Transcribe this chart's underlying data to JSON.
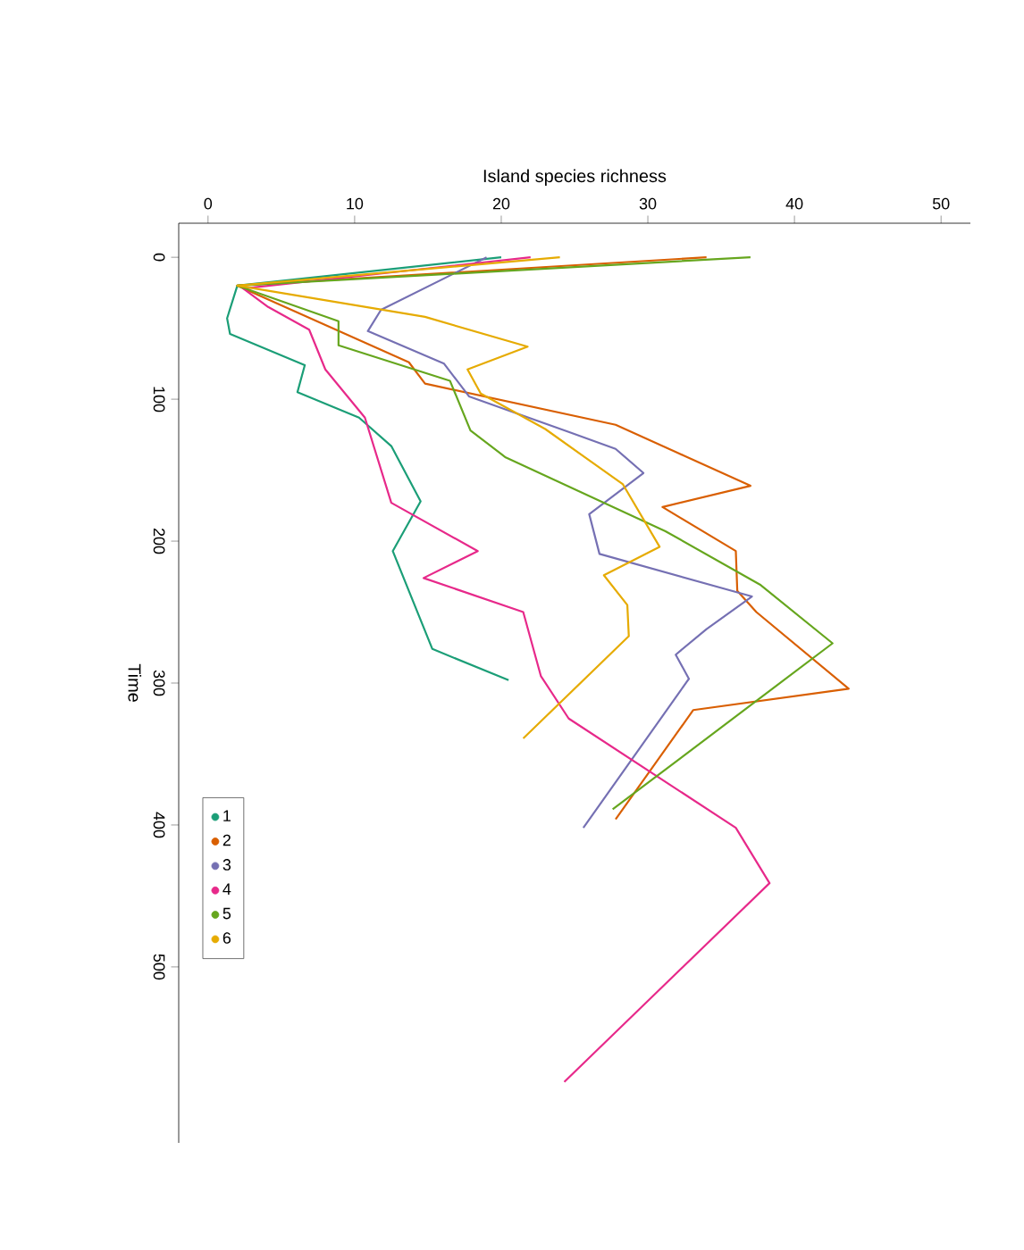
{
  "chart_data": {
    "type": "line",
    "xlabel": "Island species richness",
    "ylabel": "Time",
    "xlim": [
      -2,
      52
    ],
    "ylim": [
      624,
      -24
    ],
    "xticks": [
      0,
      10,
      20,
      30,
      40,
      50
    ],
    "yticks": [
      0,
      100,
      200,
      300,
      400,
      500
    ],
    "grid": false,
    "legend": "bottom left",
    "marker": "none",
    "line_style": "solid",
    "series": [
      {
        "name": "1",
        "color": "#1b9e77",
        "x": [
          20,
          2,
          1.3,
          1.5,
          6.6,
          6.1,
          10.3,
          12.5,
          14.5,
          12.6,
          15.3,
          20.5
        ],
        "values": [
          0,
          20,
          43,
          54,
          76,
          95,
          113,
          133,
          172,
          207,
          276,
          298
        ]
      },
      {
        "name": "2",
        "color": "#d95f02",
        "x": [
          34,
          2,
          13.7,
          14.8,
          27.8,
          37,
          31,
          36,
          36.1,
          37.4,
          43.7,
          33.1,
          27.8
        ],
        "values": [
          0,
          20,
          74,
          89,
          118,
          161,
          176,
          207,
          235,
          250,
          304,
          319,
          396
        ]
      },
      {
        "name": "3",
        "color": "#7570b3",
        "x": [
          19,
          11.8,
          10.9,
          16.1,
          17.8,
          24.6,
          27.8,
          29.7,
          26,
          26.7,
          37.1,
          34,
          31.9,
          32.8,
          25.6
        ],
        "values": [
          0,
          37,
          52,
          75,
          98,
          123,
          135,
          152,
          181,
          209,
          239,
          262,
          280,
          297,
          402
        ]
      },
      {
        "name": "4",
        "color": "#e7298a",
        "x": [
          22,
          2.4,
          4.1,
          6.9,
          8,
          10.7,
          12.5,
          18.4,
          14.7,
          21.5,
          22.7,
          24.6,
          36,
          38.3,
          24.3
        ],
        "values": [
          0,
          22,
          35,
          51,
          79,
          113,
          173,
          207,
          226,
          250,
          295,
          325,
          402,
          441,
          581
        ]
      },
      {
        "name": "5",
        "color": "#66a61e",
        "x": [
          37,
          2,
          8.9,
          8.9,
          16.5,
          17.9,
          20.3,
          31.2,
          37.7,
          42.6,
          27.6
        ],
        "values": [
          0,
          20,
          45,
          62,
          87,
          122,
          141,
          193,
          231,
          272,
          389
        ]
      },
      {
        "name": "6",
        "color": "#e6ab02",
        "x": [
          24,
          2,
          14.8,
          21.8,
          17.7,
          18.6,
          23,
          28.3,
          30.8,
          27,
          28.6,
          28.7,
          21.5
        ],
        "values": [
          0,
          20,
          42,
          63,
          79,
          96,
          121,
          160,
          204,
          224,
          245,
          267,
          339
        ]
      }
    ]
  }
}
